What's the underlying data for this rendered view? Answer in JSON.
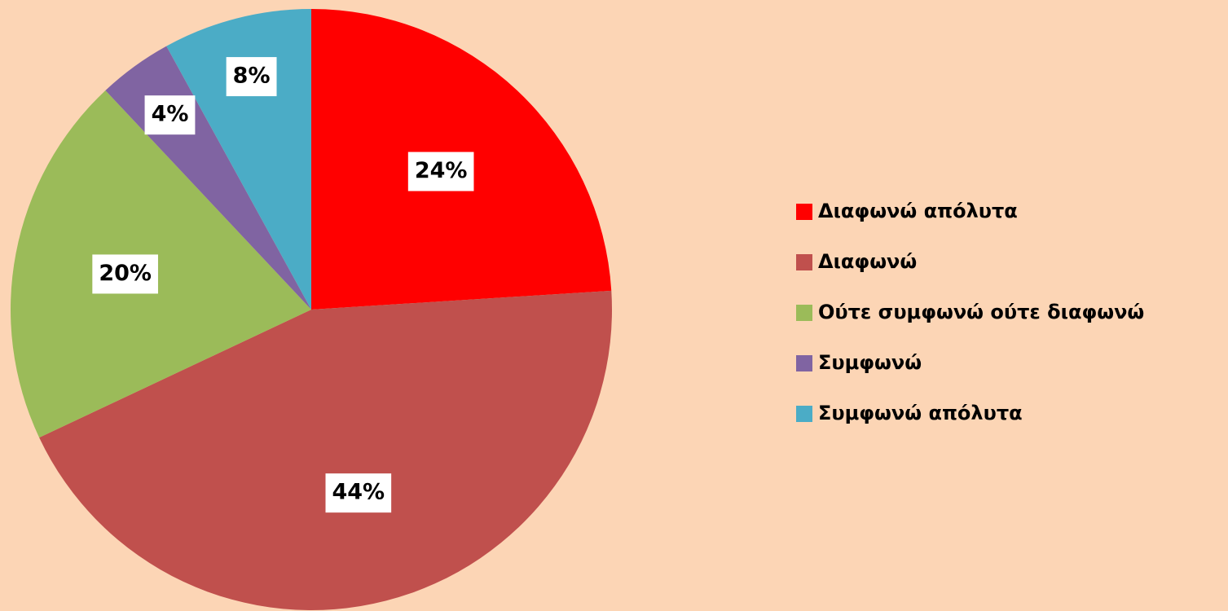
{
  "chart_data": {
    "type": "pie",
    "categories": [
      "Διαφωνώ απόλυτα",
      "Διαφωνώ",
      "Ούτε συμφωνώ ούτε διαφωνώ",
      "Συμφωνώ",
      "Συμφωνώ απόλυτα"
    ],
    "values": [
      24,
      44,
      20,
      4,
      8
    ],
    "value_labels": [
      "24%",
      "44%",
      "20%",
      "4%",
      "8%"
    ],
    "colors": [
      "#ff0000",
      "#c0504d",
      "#9bbb59",
      "#8064a2",
      "#4bacc6"
    ],
    "legend": "right"
  }
}
